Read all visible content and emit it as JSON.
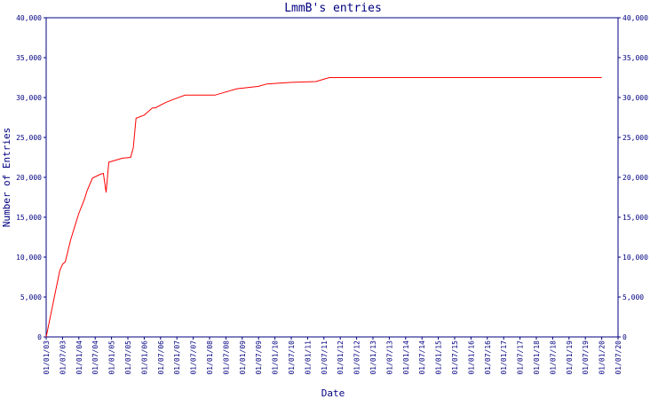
{
  "chart_data": {
    "type": "line",
    "title": "LmmB's entries",
    "x_label": "Date",
    "y_label": "Number of Entries",
    "color": "#ff0000",
    "axis_color": "#000080",
    "x": [
      "01/01/03",
      "01/03/03",
      "01/04/03",
      "01/06/03",
      "01/07/03",
      "01/08/03",
      "01/10/03",
      "01/11/03",
      "01/01/04",
      "01/03/04",
      "01/04/04",
      "01/06/04",
      "01/09/04",
      "01/10/04",
      "01/11/04",
      "01/12/04",
      "01/02/05",
      "01/05/05",
      "01/08/05",
      "01/09/05",
      "01/10/05",
      "01/01/06",
      "01/04/06",
      "01/05/06",
      "01/09/06",
      "01/12/06",
      "01/04/07",
      "01/03/08",
      "01/08/08",
      "01/11/08",
      "01/07/09",
      "01/10/09",
      "01/07/10",
      "01/04/11",
      "01/09/11",
      "01/01/20"
    ],
    "values": [
      0,
      3300,
      5000,
      8300,
      9100,
      9400,
      12200,
      13300,
      15500,
      17200,
      18300,
      19900,
      20400,
      20500,
      18100,
      21900,
      22100,
      22400,
      22500,
      23700,
      27400,
      27800,
      28700,
      28700,
      29400,
      29800,
      30300,
      30300,
      30800,
      31100,
      31400,
      31700,
      31900,
      32000,
      32500,
      32500
    ],
    "xlim": [
      "01/01/03",
      "01/07/20"
    ],
    "xticks": [
      "01/01/03",
      "01/07/03",
      "01/01/04",
      "01/07/04",
      "01/01/05",
      "01/07/05",
      "01/01/06",
      "01/07/06",
      "01/01/07",
      "01/07/07",
      "01/01/08",
      "01/07/08",
      "01/01/09",
      "01/07/09",
      "01/01/10",
      "01/07/10",
      "01/01/11",
      "01/07/11",
      "01/01/12",
      "01/07/12",
      "01/01/13",
      "01/07/13",
      "01/01/14",
      "01/07/14",
      "01/01/15",
      "01/07/15",
      "01/01/16",
      "01/07/16",
      "01/01/17",
      "01/07/17",
      "01/01/18",
      "01/07/18",
      "01/01/19",
      "01/07/19",
      "01/01/20",
      "01/07/20"
    ],
    "ylim": [
      0,
      40000
    ],
    "yticks": [
      0,
      {
        "value": 5000,
        "label": "5,000"
      },
      {
        "value": 10000,
        "label": "10,000"
      },
      {
        "value": 15000,
        "label": "15,000"
      },
      {
        "value": 20000,
        "label": "20,000"
      },
      {
        "value": 25000,
        "label": "25,000"
      },
      {
        "value": 30000,
        "label": "30,000"
      },
      {
        "value": 35000,
        "label": "35,000"
      },
      {
        "value": 40000,
        "label": "40,000"
      }
    ],
    "y2lim": [
      0,
      40000
    ],
    "y2ticks": [
      0,
      {
        "value": 5000,
        "label": "5,000"
      },
      {
        "value": 10000,
        "label": "10,000"
      },
      {
        "value": 15000,
        "label": "15,000"
      },
      {
        "value": 20000,
        "label": "20,000"
      },
      {
        "value": 25000,
        "label": "25,000"
      },
      {
        "value": 30000,
        "label": "30,000"
      },
      {
        "value": 35000,
        "label": "35,000"
      },
      {
        "value": 40000,
        "label": "40,000"
      }
    ]
  }
}
